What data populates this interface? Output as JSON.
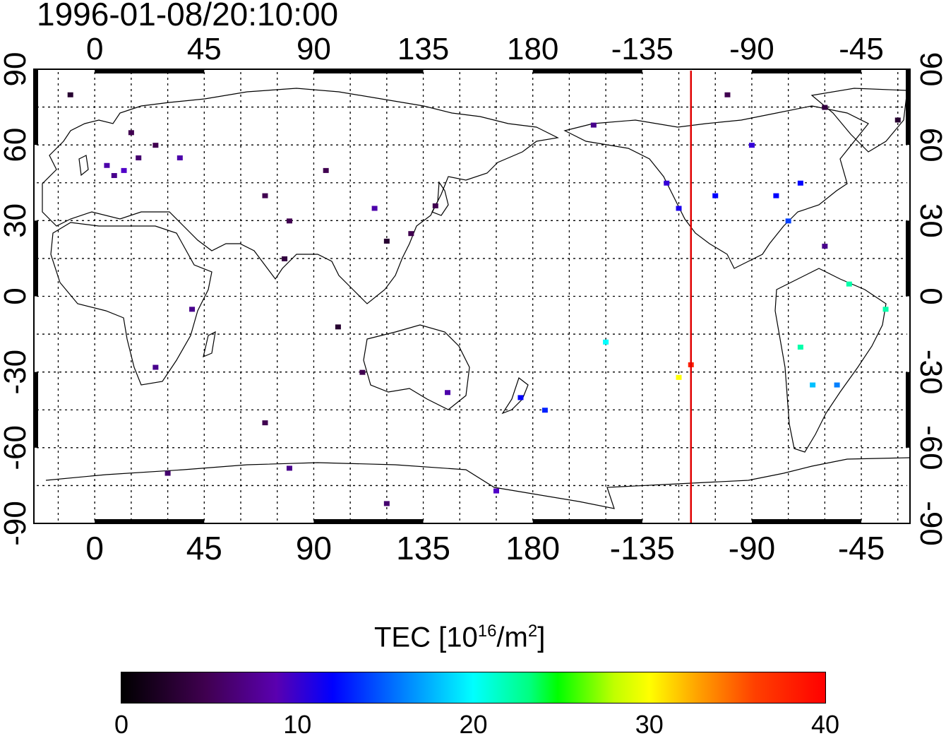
{
  "title": "1996-01-08/20:10:00",
  "map": {
    "lon_ticks": [
      "0",
      "45",
      "90",
      "135",
      "180",
      "-135",
      "-90",
      "-45"
    ],
    "lon_values": [
      0,
      45,
      90,
      135,
      180,
      225,
      270,
      315
    ],
    "lat_ticks": [
      "90",
      "60",
      "30",
      "0",
      "-30",
      "-60",
      "-90"
    ],
    "lat_values": [
      90,
      60,
      30,
      0,
      -30,
      -60,
      -90
    ],
    "lon_range": [
      -25,
      335
    ],
    "lat_range": [
      -90,
      90
    ],
    "grid": true,
    "terminator_line": {
      "lon": -115,
      "color": "#e00000"
    }
  },
  "colorbar": {
    "label_main": "TEC  [10",
    "label_sup1": "16",
    "label_mid": "/m",
    "label_sup2": "2",
    "label_end": "]",
    "ticks": [
      "0",
      "10",
      "20",
      "30",
      "40"
    ],
    "range": [
      0,
      40
    ]
  },
  "chart_data": {
    "type": "heatmap",
    "title": "1996-01-08/20:10:00",
    "value_label": "TEC [10^16/m^2]",
    "value_range": [
      0,
      40
    ],
    "points": [
      {
        "lon": 12,
        "lat": 50,
        "tec": 9
      },
      {
        "lon": 8,
        "lat": 48,
        "tec": 7
      },
      {
        "lon": 18,
        "lat": 55,
        "tec": 6
      },
      {
        "lon": 25,
        "lat": 60,
        "tec": 5
      },
      {
        "lon": 15,
        "lat": 65,
        "tec": 5
      },
      {
        "lon": 5,
        "lat": 52,
        "tec": 8
      },
      {
        "lon": -10,
        "lat": 80,
        "tec": 3
      },
      {
        "lon": 35,
        "lat": 55,
        "tec": 8
      },
      {
        "lon": 70,
        "lat": 40,
        "tec": 5
      },
      {
        "lon": 80,
        "lat": 30,
        "tec": 5
      },
      {
        "lon": 78,
        "lat": 15,
        "tec": 4
      },
      {
        "lon": 95,
        "lat": 50,
        "tec": 5
      },
      {
        "lon": 115,
        "lat": 35,
        "tec": 8
      },
      {
        "lon": 120,
        "lat": 22,
        "tec": 3
      },
      {
        "lon": 140,
        "lat": 36,
        "tec": 5
      },
      {
        "lon": 130,
        "lat": 25,
        "tec": 5
      },
      {
        "lon": 100,
        "lat": -12,
        "tec": 3
      },
      {
        "lon": 110,
        "lat": -30,
        "tec": 5
      },
      {
        "lon": 145,
        "lat": -38,
        "tec": 8
      },
      {
        "lon": 175,
        "lat": -40,
        "tec": 12
      },
      {
        "lon": 185,
        "lat": -45,
        "tec": 13
      },
      {
        "lon": 70,
        "lat": -50,
        "tec": 5
      },
      {
        "lon": 40,
        "lat": -5,
        "tec": 7
      },
      {
        "lon": 25,
        "lat": -28,
        "tec": 7
      },
      {
        "lon": 30,
        "lat": -70,
        "tec": 6
      },
      {
        "lon": 80,
        "lat": -68,
        "tec": 7
      },
      {
        "lon": 120,
        "lat": -82,
        "tec": 6
      },
      {
        "lon": 165,
        "lat": -77,
        "tec": 9
      },
      {
        "lon": 210,
        "lat": -18,
        "tec": 20
      },
      {
        "lon": 245,
        "lat": -27,
        "tec": 38
      },
      {
        "lon": 240,
        "lat": -32,
        "tec": 30
      },
      {
        "lon": 235,
        "lat": 45,
        "tec": 10
      },
      {
        "lon": 240,
        "lat": 35,
        "tec": 11
      },
      {
        "lon": 255,
        "lat": 40,
        "tec": 12
      },
      {
        "lon": 280,
        "lat": 40,
        "tec": 12
      },
      {
        "lon": 290,
        "lat": 45,
        "tec": 12
      },
      {
        "lon": 285,
        "lat": 30,
        "tec": 14
      },
      {
        "lon": 300,
        "lat": 20,
        "tec": 7
      },
      {
        "lon": 310,
        "lat": 5,
        "tec": 22
      },
      {
        "lon": 325,
        "lat": -5,
        "tec": 22
      },
      {
        "lon": 290,
        "lat": -20,
        "tec": 22
      },
      {
        "lon": 295,
        "lat": -35,
        "tec": 18
      },
      {
        "lon": 305,
        "lat": -35,
        "tec": 16
      },
      {
        "lon": 260,
        "lat": 80,
        "tec": 5
      },
      {
        "lon": 300,
        "lat": 75,
        "tec": 4
      },
      {
        "lon": 330,
        "lat": 70,
        "tec": 3
      },
      {
        "lon": 205,
        "lat": 68,
        "tec": 7
      },
      {
        "lon": 270,
        "lat": 60,
        "tec": 10
      }
    ]
  }
}
